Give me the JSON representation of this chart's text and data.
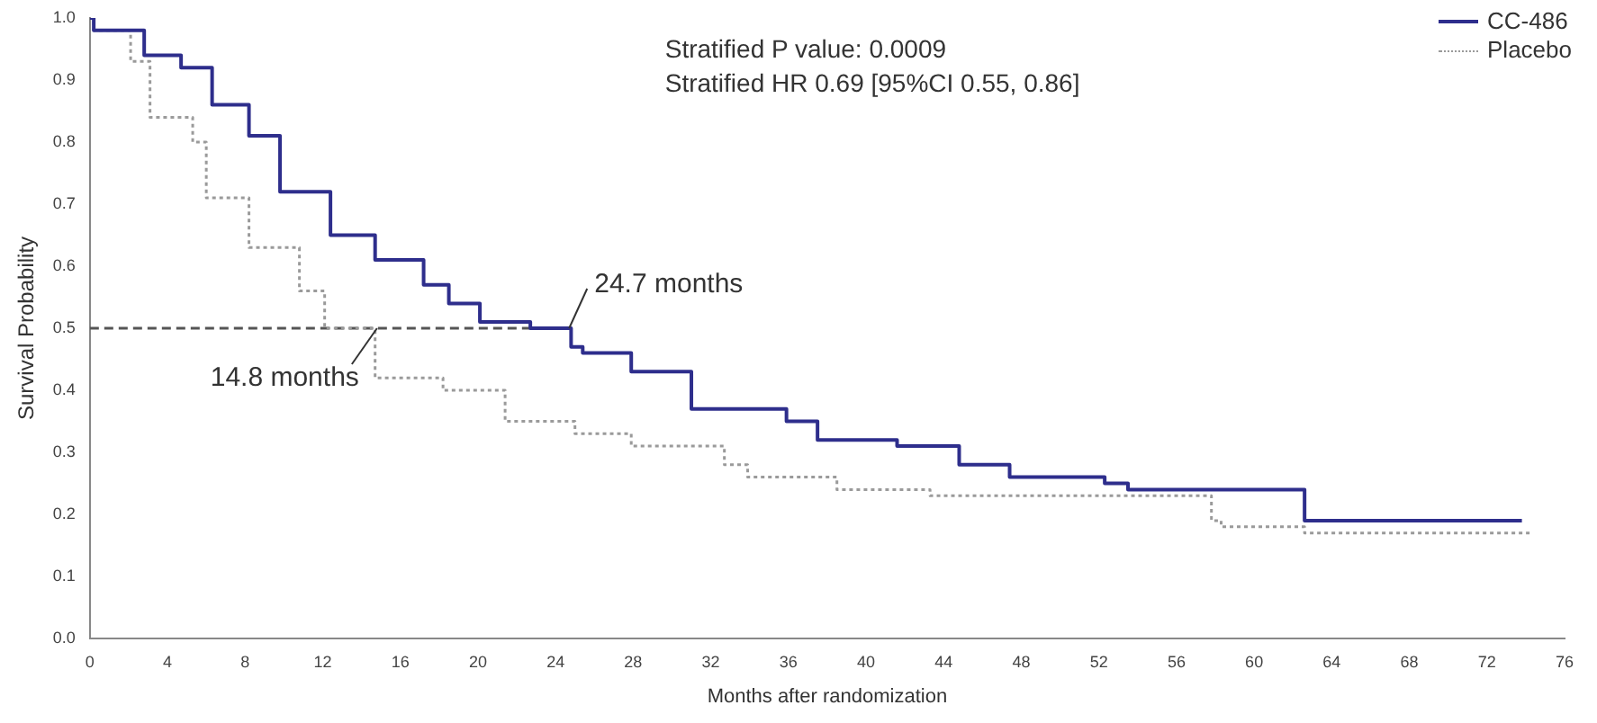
{
  "chart_data": {
    "type": "step",
    "xlabel": "Months after randomization",
    "ylabel": "Survival Probability",
    "xlim": [
      0,
      76
    ],
    "xticks": [
      0,
      4,
      8,
      12,
      16,
      20,
      24,
      28,
      32,
      36,
      40,
      44,
      48,
      52,
      56,
      60,
      64,
      68,
      72,
      76
    ],
    "ylim": [
      0,
      1
    ],
    "yticks": [
      {
        "value": 0,
        "label": "0.0"
      },
      0.1,
      0.2,
      0.3,
      0.4,
      0.5,
      0.6,
      0.7,
      0.8,
      0.9,
      {
        "value": 1,
        "label": "1.0"
      }
    ],
    "grid": false,
    "legend": "top right",
    "marker": "none",
    "annotations": [
      "Stratified P value: 0.0009",
      "Stratified HR 0.69 [95%CI 0.55, 0.86]",
      {
        "text": "24.7 months",
        "x": 24.7,
        "y": 0.5
      },
      {
        "text": "14.8 months",
        "x": 14.8,
        "y": 0.5
      }
    ],
    "series": [
      {
        "name": "CC-486",
        "color": "#2e2e8c",
        "line_style": "solid",
        "x": [
          0,
          0.2,
          2.8,
          4.7,
          6.3,
          8.2,
          9.8,
          12.4,
          14.7,
          17.2,
          18.5,
          20.1,
          22.7,
          24.8,
          25.4,
          27.9,
          31,
          35.9,
          37.5,
          41.6,
          44.8,
          47.4,
          48.7,
          52.3,
          53.5,
          54.2,
          62.6,
          63,
          73.8
        ],
        "values": [
          1,
          1,
          0.98,
          0.94,
          0.92,
          0.86,
          0.81,
          0.72,
          0.65,
          0.61,
          0.57,
          0.54,
          0.51,
          0.5,
          0.47,
          0.46,
          0.43,
          0.37,
          0.35,
          0.32,
          0.31,
          0.28,
          0.26,
          0.26,
          0.25,
          0.24,
          0.24,
          0.19,
          0.19
        ]
      },
      {
        "name": "Placebo",
        "color": "#9a9a9a",
        "line_style": "dotted",
        "x": [
          0,
          0.2,
          2.1,
          3.1,
          5.3,
          6,
          8.2,
          10.8,
          12.1,
          14.7,
          18.2,
          21.4,
          25,
          27.9,
          32.7,
          33.9,
          38.5,
          43.3,
          50.3,
          57.8,
          58.3,
          62.6,
          63.2,
          74.2
        ],
        "values": [
          1,
          1,
          0.98,
          0.93,
          0.84,
          0.8,
          0.71,
          0.63,
          0.56,
          0.5,
          0.42,
          0.4,
          0.35,
          0.33,
          0.31,
          0.28,
          0.26,
          0.24,
          0.23,
          0.23,
          0.19,
          0.18,
          0.17,
          0.17
        ]
      },
      {
        "type": "line",
        "color": "#555555",
        "line_style": "dashed",
        "x": [
          0,
          24.7
        ],
        "values": [
          0.5,
          0.5
        ]
      }
    ]
  }
}
